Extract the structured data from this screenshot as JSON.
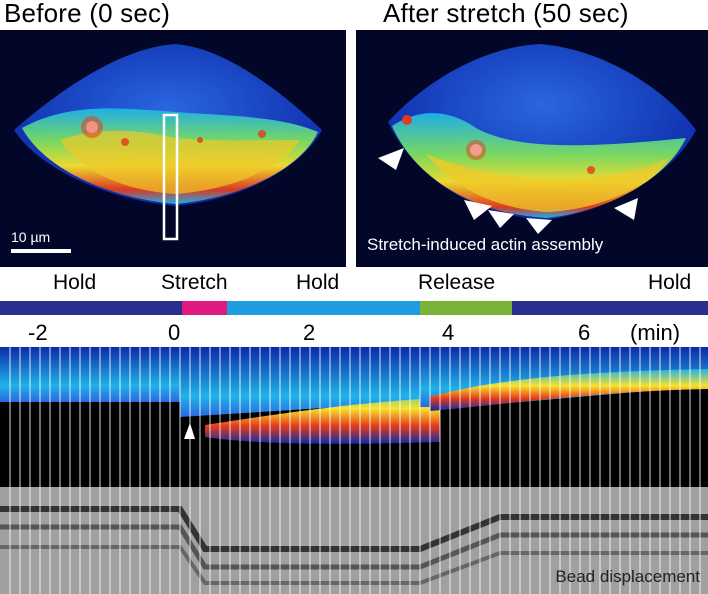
{
  "panels": {
    "before": {
      "title": "Before (0 sec)",
      "scale_bar_label": "10 µm"
    },
    "after": {
      "title": "After stretch (50 sec)",
      "caption": "Stretch-induced actin assembly"
    }
  },
  "protocol": {
    "phases": [
      {
        "label": "Hold",
        "color": "#2a2e8c"
      },
      {
        "label": "Stretch",
        "color": "#e0197f"
      },
      {
        "label": "Hold",
        "color": "#1e9ee0"
      },
      {
        "label": "Release",
        "color": "#7ab23a"
      },
      {
        "label": "Hold",
        "color": "#2a2e8c"
      }
    ]
  },
  "time_axis": {
    "ticks": [
      "-2",
      "0",
      "2",
      "4",
      "6"
    ],
    "unit": "(min)"
  },
  "bead_panel": {
    "label": "Bead displacement"
  },
  "colors": {
    "background_dark": "#02072a",
    "cell_blue": "#1744c8",
    "cell_cyan": "#1fb3e8",
    "cell_yellow": "#f7e22a",
    "cell_red": "#e53a1b"
  }
}
